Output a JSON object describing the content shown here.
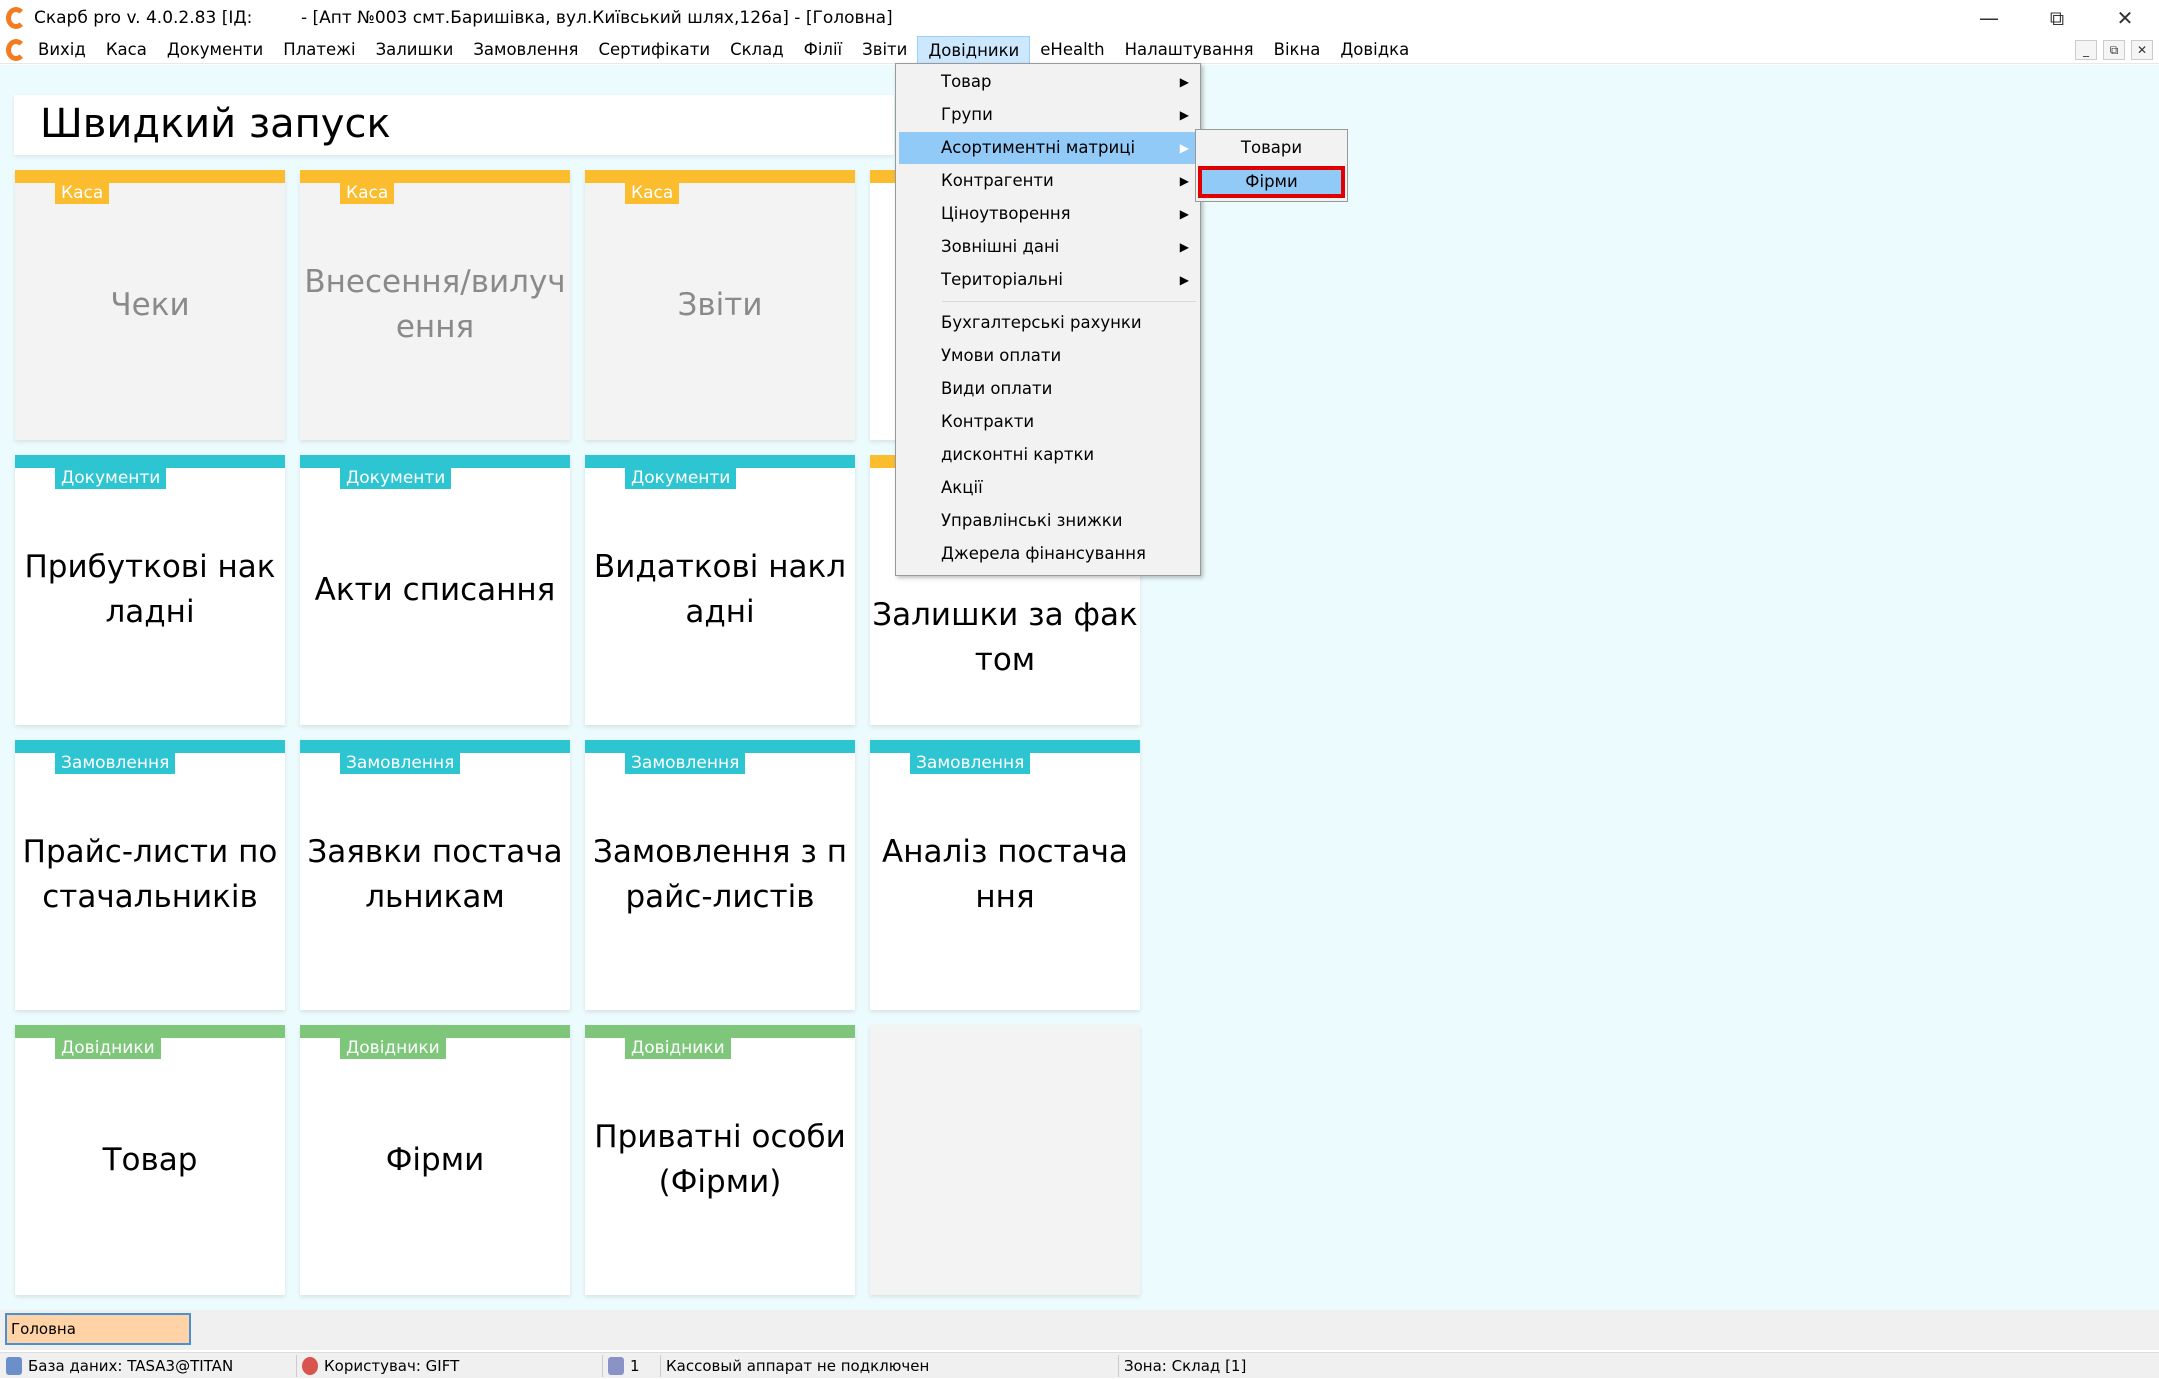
{
  "window": {
    "title": "Скарб pro v. 4.0.2.83 [ІД:         - [Апт №003 смт.Баришівка, вул.Київський шлях,126а] - [Головна]",
    "controls": [
      "minimize",
      "restore",
      "close"
    ]
  },
  "menubar": {
    "items": [
      "Вихід",
      "Каса",
      "Документи",
      "Платежі",
      "Залишки",
      "Замовлення",
      "Сертифікати",
      "Склад",
      "Філії",
      "Звіти",
      "Довідники",
      "eHealth",
      "Налаштування",
      "Вікна",
      "Довідка"
    ],
    "active": "Довідники"
  },
  "quick_launch": {
    "title": "Швидкий запуск"
  },
  "colors": {
    "kasa": "#FBBC2E",
    "documents": "#2EC5D3",
    "orders": "#2EC5D3",
    "directories": "#7DC67A",
    "highlight": "#91C9F7",
    "selection_border": "#E00000",
    "background": "#ECFBFD"
  },
  "tiles": [
    {
      "badge": "Каса",
      "label": "Чеки",
      "color": "#FBBC2E",
      "disabled": true
    },
    {
      "badge": "Каса",
      "label": "Внесення/вилучення",
      "color": "#FBBC2E",
      "disabled": true
    },
    {
      "badge": "Каса",
      "label": "Звіти",
      "color": "#FBBC2E",
      "disabled": true
    },
    {
      "badge": "",
      "label": "",
      "color": "#FBBC2E"
    },
    {
      "badge": "Документи",
      "label": "Прибуткові накладні",
      "color": "#2EC5D3"
    },
    {
      "badge": "Документи",
      "label": "Акти списання",
      "color": "#2EC5D3"
    },
    {
      "badge": "Документи",
      "label": "Видаткові накладні",
      "color": "#2EC5D3"
    },
    {
      "badge": "",
      "label": "Залишки за фактом",
      "color": "#FBBC2E"
    },
    {
      "badge": "Замовлення",
      "label": "Прайс-листи постачальників",
      "color": "#2EC5D3"
    },
    {
      "badge": "Замовлення",
      "label": "Заявки постачальникам",
      "color": "#2EC5D3"
    },
    {
      "badge": "Замовлення",
      "label": "Замовлення з прайс-листів",
      "color": "#2EC5D3"
    },
    {
      "badge": "Замовлення",
      "label": "Аналіз постачання",
      "color": "#2EC5D3"
    },
    {
      "badge": "Довідники",
      "label": "Товар",
      "color": "#7DC67A"
    },
    {
      "badge": "Довідники",
      "label": "Фірми",
      "color": "#7DC67A"
    },
    {
      "badge": "Довідники",
      "label": "Приватні особи (Фірми)",
      "color": "#7DC67A"
    },
    {
      "badge": "",
      "label": "",
      "color": "",
      "empty": true
    }
  ],
  "dropdown": {
    "items": [
      {
        "label": "Товар",
        "submenu": true
      },
      {
        "label": "Групи",
        "submenu": true
      },
      {
        "label": "Асортиментні матриці",
        "submenu": true,
        "highlighted": true
      },
      {
        "label": "Контрагенти",
        "submenu": true
      },
      {
        "label": "Ціноутворення",
        "submenu": true
      },
      {
        "label": "Зовнішні дані",
        "submenu": true
      },
      {
        "label": "Територіальні",
        "submenu": true
      },
      {
        "separator": true
      },
      {
        "label": "Бухгалтерські рахунки"
      },
      {
        "label": "Умови оплати"
      },
      {
        "label": "Види оплати"
      },
      {
        "label": "Контракти"
      },
      {
        "label": "дисконтні картки"
      },
      {
        "label": "Акції"
      },
      {
        "label": "Управлінські знижки"
      },
      {
        "label": "Джерела фінансування"
      }
    ]
  },
  "submenu": {
    "items": [
      {
        "label": "Товари"
      },
      {
        "label": "Фірми",
        "selected": true
      }
    ]
  },
  "tabs": {
    "items": [
      "Головна"
    ]
  },
  "statusbar": {
    "database": "База даних: TASA3@TITAN",
    "user": "Користувач: GIFT",
    "count": "1",
    "cash_register": "Кассовый аппарат не подключен",
    "zone": "Зона: Склад [1]"
  }
}
